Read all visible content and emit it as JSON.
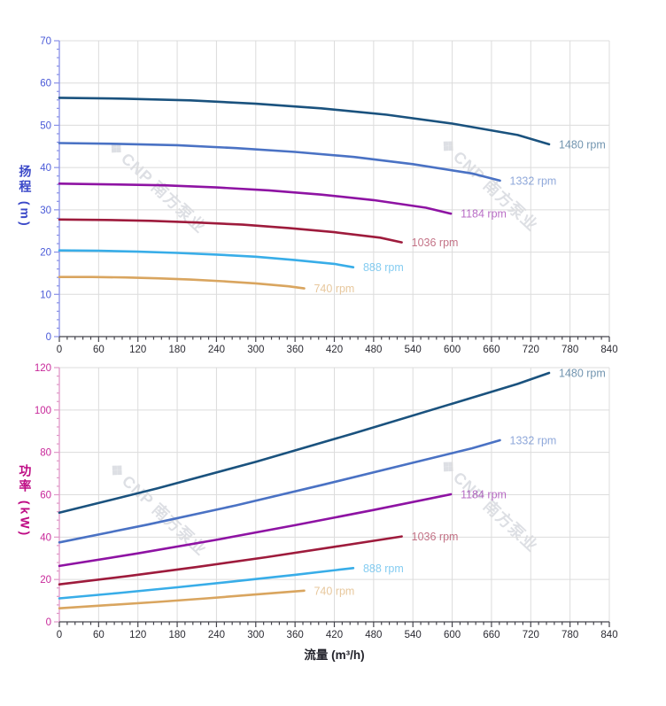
{
  "watermark": {
    "logo": "❖",
    "text": "CNP 南方泵业"
  },
  "axes": {
    "flow_title": "流量 (m³/h)",
    "head_title": "扬程 (m)",
    "power_title": "功率 (kW)"
  },
  "colors": {
    "grid": "#dcdcdc",
    "x_axis": "#44444c",
    "x_tick_label": "#2b2b33",
    "head_axis_line": "#8890e8",
    "head_tick_label": "#4a5ad8",
    "head_title": "#3a48c8",
    "power_axis_line": "#e098c8",
    "power_tick_label": "#c8289a",
    "power_title": "#be0a84",
    "watermark": "#c9cdd4"
  },
  "chart_data": [
    {
      "type": "line",
      "name": "head-vs-flow",
      "xlabel": "流量 (m³/h)",
      "ylabel": "扬程 (m)",
      "xlim": [
        0,
        840
      ],
      "ylim": [
        0,
        70
      ],
      "grid": true,
      "legend_position": "end-of-line",
      "x_ticks": [
        0,
        60,
        120,
        180,
        240,
        300,
        360,
        420,
        480,
        540,
        600,
        660,
        720,
        780,
        840
      ],
      "y_ticks": [
        0,
        10,
        20,
        30,
        40,
        50,
        60,
        70
      ],
      "x_minor_step": 12,
      "y_minor_step": 2,
      "axis_color": "#8890e8",
      "tick_label_color": "#4a5ad8",
      "series": [
        {
          "name": "1480 rpm",
          "color": "#1a527e",
          "points": [
            [
              0,
              56.5
            ],
            [
              100,
              56.3
            ],
            [
              200,
              55.9
            ],
            [
              300,
              55.1
            ],
            [
              400,
              54.0
            ],
            [
              500,
              52.5
            ],
            [
              600,
              50.4
            ],
            [
              700,
              47.7
            ],
            [
              748,
              45.5
            ]
          ]
        },
        {
          "name": "1332 rpm",
          "color": "#4a72c4",
          "points": [
            [
              0,
              45.8
            ],
            [
              90,
              45.6
            ],
            [
              180,
              45.3
            ],
            [
              270,
              44.6
            ],
            [
              360,
              43.7
            ],
            [
              450,
              42.5
            ],
            [
              540,
              40.8
            ],
            [
              630,
              38.6
            ],
            [
              673,
              36.9
            ]
          ]
        },
        {
          "name": "1184 rpm",
          "color": "#8e13a3",
          "points": [
            [
              0,
              36.2
            ],
            [
              80,
              36.0
            ],
            [
              160,
              35.8
            ],
            [
              240,
              35.3
            ],
            [
              320,
              34.6
            ],
            [
              400,
              33.6
            ],
            [
              480,
              32.3
            ],
            [
              560,
              30.5
            ],
            [
              598,
              29.1
            ]
          ]
        },
        {
          "name": "1036 rpm",
          "color": "#9e1b3c",
          "points": [
            [
              0,
              27.7
            ],
            [
              70,
              27.6
            ],
            [
              140,
              27.4
            ],
            [
              210,
              27.0
            ],
            [
              280,
              26.5
            ],
            [
              350,
              25.7
            ],
            [
              420,
              24.7
            ],
            [
              490,
              23.4
            ],
            [
              523,
              22.3
            ]
          ]
        },
        {
          "name": "888 rpm",
          "color": "#38ade8",
          "points": [
            [
              0,
              20.4
            ],
            [
              60,
              20.3
            ],
            [
              120,
              20.1
            ],
            [
              180,
              19.8
            ],
            [
              240,
              19.4
            ],
            [
              300,
              18.9
            ],
            [
              360,
              18.1
            ],
            [
              420,
              17.2
            ],
            [
              449,
              16.4
            ]
          ]
        },
        {
          "name": "740 rpm",
          "color": "#d9a55f",
          "points": [
            [
              0,
              14.1
            ],
            [
              50,
              14.1
            ],
            [
              100,
              14.0
            ],
            [
              150,
              13.8
            ],
            [
              200,
              13.5
            ],
            [
              250,
              13.1
            ],
            [
              300,
              12.6
            ],
            [
              350,
              11.9
            ],
            [
              374,
              11.4
            ]
          ]
        }
      ]
    },
    {
      "type": "line",
      "name": "power-vs-flow",
      "xlabel": "流量 (m³/h)",
      "ylabel": "功率 (kW)",
      "xlim": [
        0,
        840
      ],
      "ylim": [
        0,
        120
      ],
      "grid": true,
      "legend_position": "end-of-line",
      "x_ticks": [
        0,
        60,
        120,
        180,
        240,
        300,
        360,
        420,
        480,
        540,
        600,
        660,
        720,
        780,
        840
      ],
      "y_ticks": [
        0,
        20,
        40,
        60,
        80,
        100,
        120
      ],
      "x_minor_step": 12,
      "y_minor_step": 4,
      "axis_color": "#e098c8",
      "tick_label_color": "#c8289a",
      "series": [
        {
          "name": "1480 rpm",
          "color": "#1a527e",
          "points": [
            [
              0,
              51.5
            ],
            [
              150,
              63.0
            ],
            [
              300,
              75.5
            ],
            [
              450,
              89.0
            ],
            [
              600,
              103.0
            ],
            [
              700,
              112.3
            ],
            [
              748,
              117.5
            ]
          ]
        },
        {
          "name": "1332 rpm",
          "color": "#4a72c4",
          "points": [
            [
              0,
              37.5
            ],
            [
              135,
              45.9
            ],
            [
              270,
              55.0
            ],
            [
              405,
              64.9
            ],
            [
              540,
              75.1
            ],
            [
              630,
              81.9
            ],
            [
              673,
              85.7
            ]
          ]
        },
        {
          "name": "1184 rpm",
          "color": "#8e13a3",
          "points": [
            [
              0,
              26.4
            ],
            [
              120,
              32.3
            ],
            [
              240,
              38.7
            ],
            [
              360,
              45.6
            ],
            [
              480,
              52.8
            ],
            [
              598,
              60.2
            ]
          ]
        },
        {
          "name": "1036 rpm",
          "color": "#9e1b3c",
          "points": [
            [
              0,
              17.7
            ],
            [
              105,
              21.6
            ],
            [
              210,
              25.9
            ],
            [
              315,
              30.5
            ],
            [
              420,
              35.4
            ],
            [
              523,
              40.3
            ]
          ]
        },
        {
          "name": "888 rpm",
          "color": "#38ade8",
          "points": [
            [
              0,
              11.1
            ],
            [
              90,
              13.6
            ],
            [
              180,
              16.3
            ],
            [
              270,
              19.2
            ],
            [
              360,
              22.2
            ],
            [
              449,
              25.4
            ]
          ]
        },
        {
          "name": "740 rpm",
          "color": "#d9a55f",
          "points": [
            [
              0,
              6.4
            ],
            [
              75,
              7.9
            ],
            [
              150,
              9.4
            ],
            [
              225,
              11.1
            ],
            [
              300,
              12.9
            ],
            [
              374,
              14.7
            ]
          ]
        }
      ]
    }
  ]
}
